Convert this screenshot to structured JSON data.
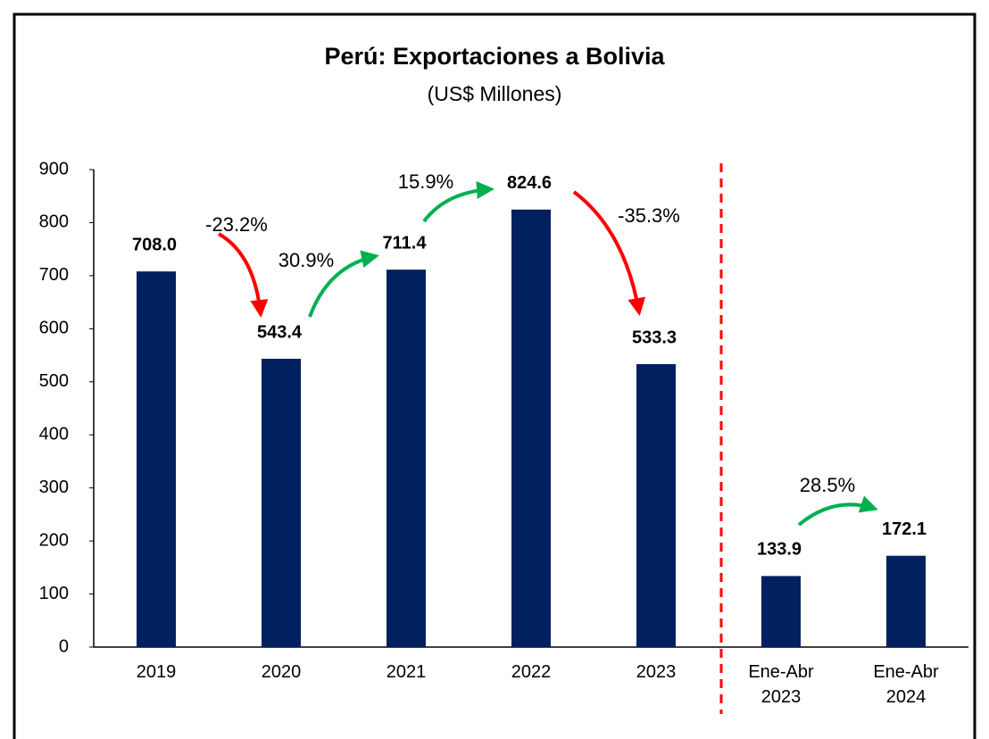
{
  "chart_data": {
    "type": "bar",
    "title": "Perú: Exportaciones a Bolivia",
    "subtitle": "(US$ Millones)",
    "categories": [
      "2019",
      "2020",
      "2021",
      "2022",
      "2023",
      "Ene-Abr 2023",
      "Ene-Abr 2024"
    ],
    "values": [
      708.0,
      543.4,
      711.4,
      824.6,
      533.3,
      133.9,
      172.1
    ],
    "value_labels": [
      "708.0",
      "543.4",
      "711.4",
      "824.6",
      "533.3",
      "133.9",
      "172.1"
    ],
    "color": "#002060",
    "ylim": [
      0,
      900
    ],
    "yticks": [
      0,
      100,
      200,
      300,
      400,
      500,
      600,
      700,
      800,
      900
    ],
    "grid": false,
    "annotations": [
      {
        "text": "-23.2%",
        "color": "#ff0000"
      },
      {
        "text": "30.9%",
        "color": "#00b050"
      },
      {
        "text": "15.9%",
        "color": "#00b050"
      },
      {
        "text": "-35.3%",
        "color": "#ff0000"
      },
      {
        "text": "28.5%",
        "color": "#00b050"
      }
    ]
  }
}
